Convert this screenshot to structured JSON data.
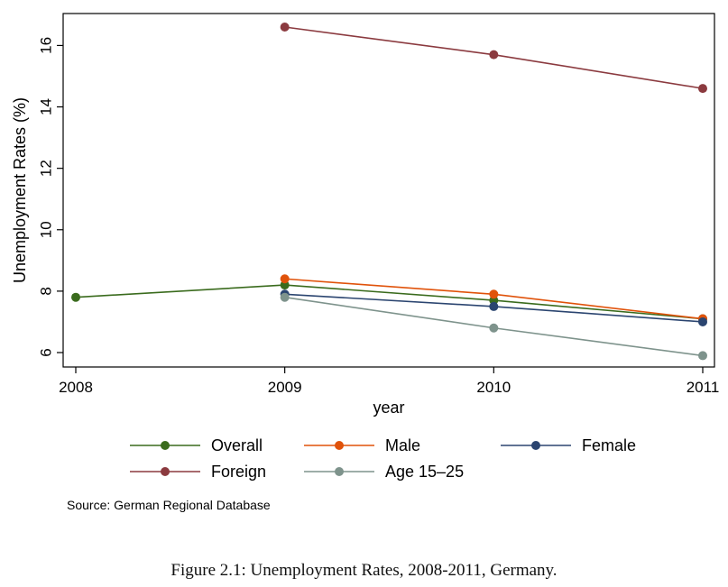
{
  "chart_data": {
    "type": "line",
    "x": [
      2008,
      2009,
      2010,
      2011
    ],
    "xlabel": "year",
    "ylabel": "Unemployment Rates (%)",
    "xlim": [
      2008,
      2011
    ],
    "ylim": [
      5.5,
      16.9
    ],
    "x_ticks": [
      2008,
      2009,
      2010,
      2011
    ],
    "y_ticks": [
      6,
      8,
      10,
      12,
      14,
      16
    ],
    "grid": false,
    "legend_position": "bottom",
    "series": [
      {
        "name": "Overall",
        "color": "#3a6b1d",
        "values": [
          7.8,
          8.2,
          7.7,
          7.1
        ]
      },
      {
        "name": "Male",
        "color": "#e0520a",
        "values": [
          null,
          8.4,
          7.9,
          7.1
        ]
      },
      {
        "name": "Female",
        "color": "#2b4570",
        "values": [
          null,
          7.9,
          7.5,
          7.0
        ]
      },
      {
        "name": "Foreign",
        "color": "#8b3a3f",
        "values": [
          null,
          16.6,
          15.7,
          14.6
        ]
      },
      {
        "name": "Age 15–25",
        "color": "#7e938c",
        "values": [
          null,
          7.8,
          6.8,
          5.9
        ]
      }
    ],
    "source_note": "Source: German Regional Database"
  },
  "caption": "Figure 2.1: Unemployment Rates, 2008-2011, Germany."
}
